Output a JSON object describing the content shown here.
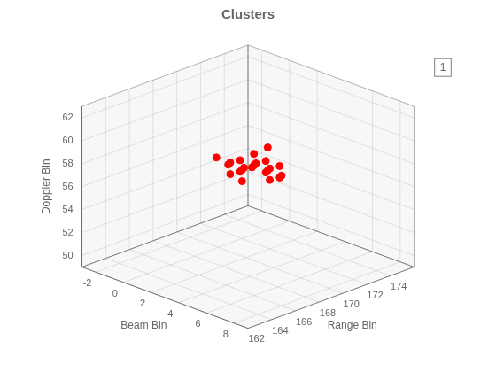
{
  "chart_data": {
    "type": "scatter3d",
    "title": "Clusters",
    "xlabel": "Range Bin",
    "ylabel": "Beam Bin",
    "zlabel": "Doppler Bin",
    "xlim": [
      162,
      176
    ],
    "ylim": [
      9,
      -3
    ],
    "zlim": [
      49,
      63
    ],
    "xticks": [
      162,
      164,
      166,
      168,
      170,
      172,
      174
    ],
    "yticks": [
      -2,
      0,
      2,
      4,
      6,
      8
    ],
    "zticks": [
      50,
      52,
      54,
      56,
      58,
      60,
      62
    ],
    "x": [
      171,
      171,
      171,
      172,
      172,
      172,
      172,
      172,
      173,
      173,
      173,
      173,
      173,
      173,
      174,
      174,
      174,
      174,
      174,
      172,
      171,
      173
    ],
    "y": [
      0,
      1,
      0,
      -1,
      0,
      1,
      2,
      0,
      -1,
      0,
      1,
      2,
      0,
      1,
      0,
      1,
      -1,
      1,
      0,
      2,
      -1,
      -1
    ],
    "z": [
      56,
      56,
      55,
      55,
      55,
      56,
      56,
      54,
      54,
      55,
      55,
      55,
      56,
      57,
      54,
      54,
      54,
      55,
      55,
      55,
      56,
      55
    ],
    "color": "#ff0000",
    "grid": true,
    "annotations": [
      "1"
    ]
  }
}
